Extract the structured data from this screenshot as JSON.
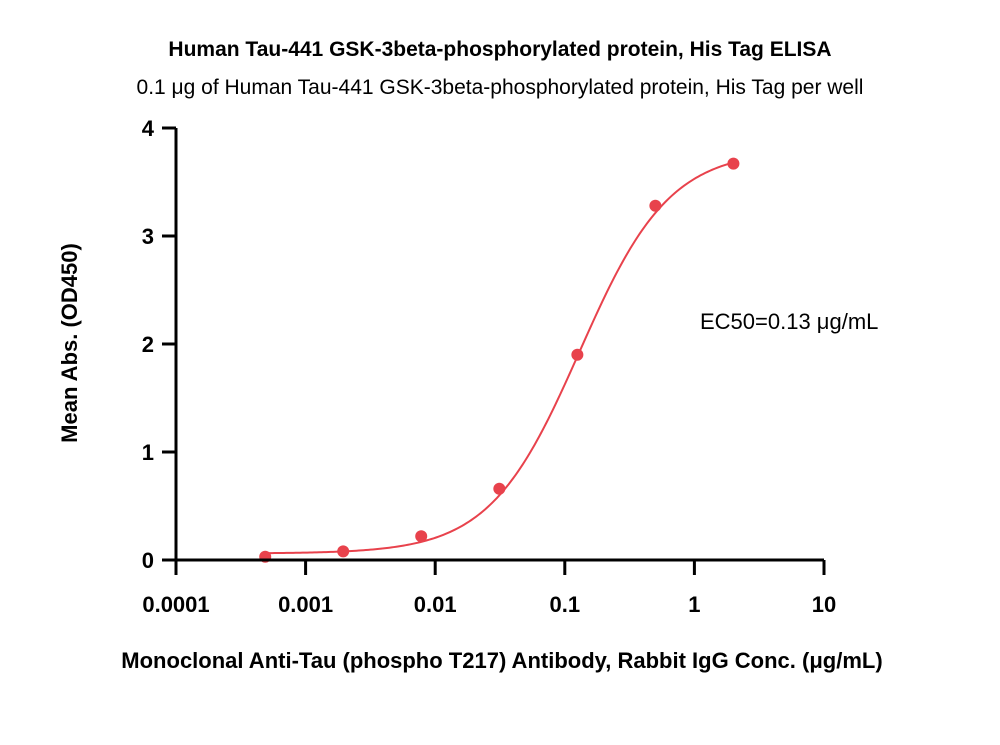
{
  "chart_data": {
    "type": "scatter",
    "title": "Human Tau-441 GSK-3beta-phosphorylated protein, His Tag ELISA",
    "subtitle": "0.1 μg of Human Tau-441 GSK-3beta-phosphorylated protein, His Tag per well",
    "xlabel": "Monoclonal Anti-Tau (phospho T217) Antibody, Rabbit IgG Conc. (μg/mL)",
    "ylabel": "Mean Abs. (OD450)",
    "x_scale": "log",
    "xlim": [
      0.0001,
      10
    ],
    "ylim": [
      0,
      4
    ],
    "x_ticks": [
      0.0001,
      0.001,
      0.01,
      0.1,
      1,
      10
    ],
    "x_tick_labels": [
      "0.0001",
      "0.001",
      "0.01",
      "0.1",
      "1",
      "10"
    ],
    "y_ticks": [
      0,
      1,
      2,
      3,
      4
    ],
    "y_tick_labels": [
      "0",
      "1",
      "2",
      "3",
      "4"
    ],
    "grid": false,
    "annotation": "EC50=0.13 μg/mL",
    "series": [
      {
        "color": "#e8424c",
        "x": [
          0.000488,
          0.00195,
          0.0078,
          0.03125,
          0.125,
          0.5,
          2
        ],
        "y": [
          0.03,
          0.08,
          0.22,
          0.66,
          1.9,
          3.28,
          3.67
        ],
        "fit": {
          "bottom": 0.06,
          "top": 3.8,
          "ec50": 0.13,
          "hill": 1.25
        }
      }
    ]
  }
}
